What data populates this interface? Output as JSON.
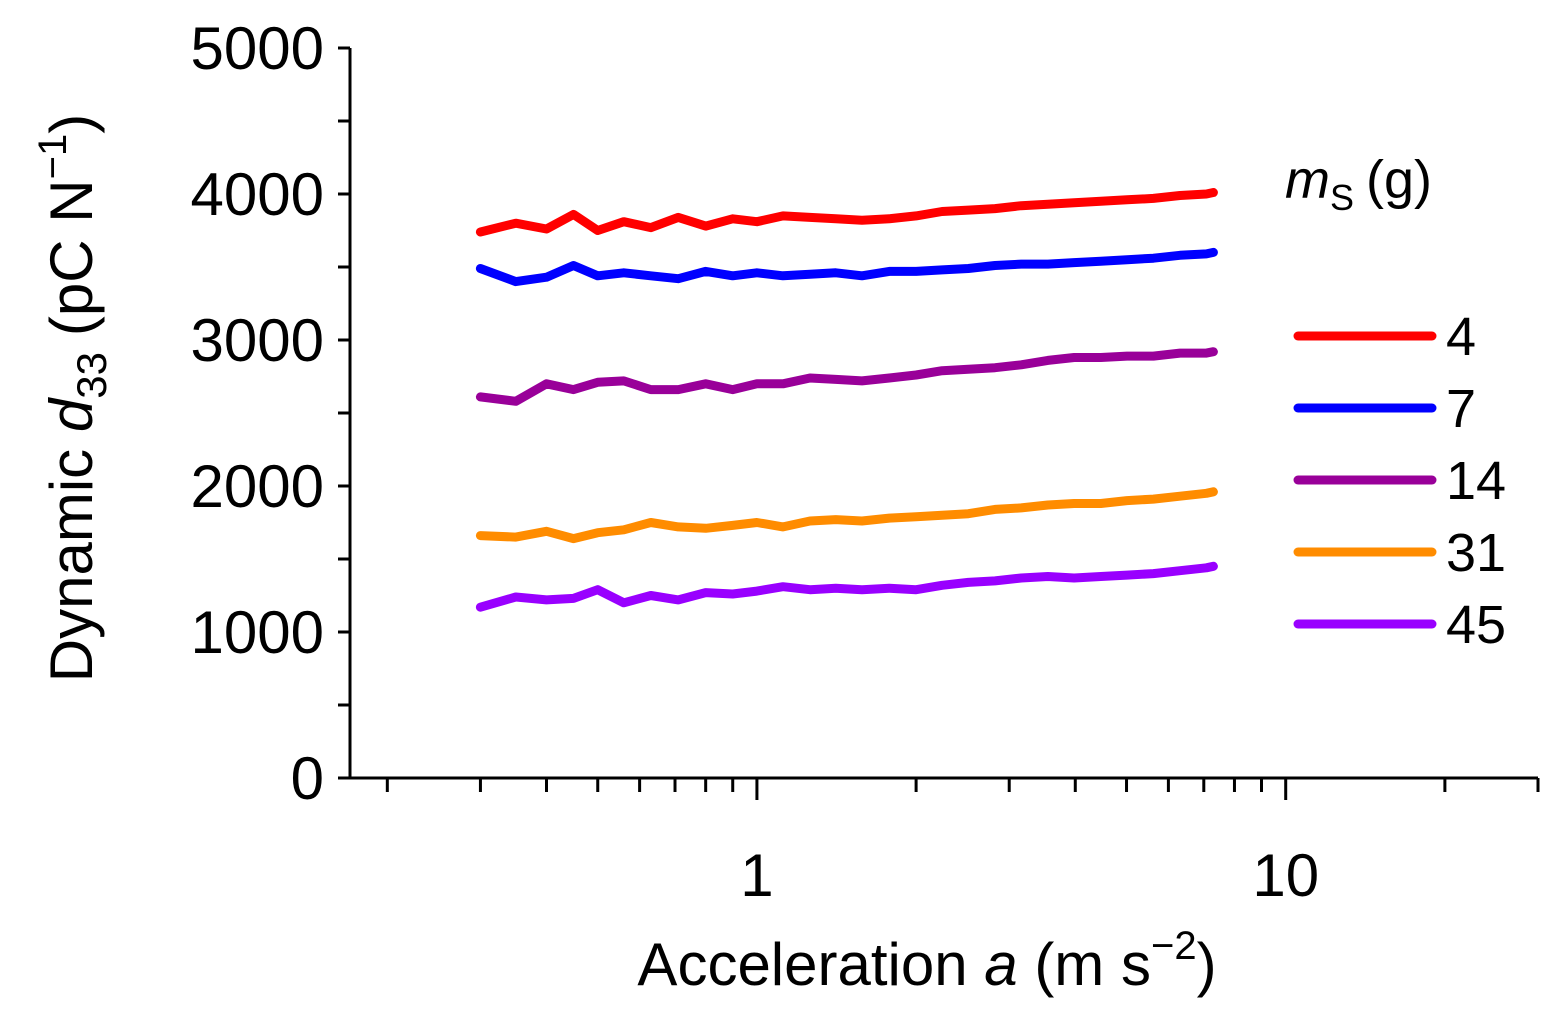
{
  "chart_data": {
    "type": "line",
    "xaxis": {
      "label": "Acceleration",
      "label_var": "a",
      "label_unit_prefix": "(m s",
      "label_unit_exp": "−2",
      "label_unit_suffix": ")",
      "scale": "log",
      "range": [
        0.17,
        30
      ],
      "tick_labels": [
        {
          "value": 1,
          "text": "1"
        },
        {
          "value": 10,
          "text": "10"
        }
      ],
      "minor_ticks": [
        0.2,
        0.3,
        0.4,
        0.5,
        0.6,
        0.7,
        0.8,
        0.9,
        2,
        3,
        4,
        5,
        6,
        7,
        8,
        9,
        20,
        30
      ]
    },
    "yaxis": {
      "label_prefix": "Dynamic ",
      "label_var": "d",
      "label_sub": "33",
      "label_unit_prefix": "(pC N",
      "label_unit_exp": "−1",
      "label_unit_suffix": ")",
      "range": [
        0,
        5000
      ],
      "ticks": [
        0,
        1000,
        2000,
        3000,
        4000,
        5000
      ],
      "tick_labels": [
        "0",
        "1000",
        "2000",
        "3000",
        "4000",
        "5000"
      ],
      "minor_ticks": [
        500,
        1500,
        2500,
        3500,
        4500
      ]
    },
    "legend": {
      "title_var": "m",
      "title_sub": "S",
      "title_unit": "(g)",
      "position": "right"
    },
    "series": [
      {
        "name": "4",
        "color": "#ff0000",
        "points": [
          [
            0.3,
            3740
          ],
          [
            0.35,
            3800
          ],
          [
            0.4,
            3760
          ],
          [
            0.45,
            3860
          ],
          [
            0.5,
            3750
          ],
          [
            0.56,
            3810
          ],
          [
            0.63,
            3770
          ],
          [
            0.71,
            3840
          ],
          [
            0.8,
            3780
          ],
          [
            0.9,
            3830
          ],
          [
            1.0,
            3810
          ],
          [
            1.12,
            3850
          ],
          [
            1.26,
            3840
          ],
          [
            1.41,
            3830
          ],
          [
            1.58,
            3820
          ],
          [
            1.78,
            3830
          ],
          [
            2.0,
            3850
          ],
          [
            2.24,
            3880
          ],
          [
            2.51,
            3890
          ],
          [
            2.82,
            3900
          ],
          [
            3.16,
            3920
          ],
          [
            3.55,
            3930
          ],
          [
            3.98,
            3940
          ],
          [
            4.47,
            3950
          ],
          [
            5.01,
            3960
          ],
          [
            5.62,
            3970
          ],
          [
            6.31,
            3990
          ],
          [
            7.08,
            4000
          ],
          [
            7.3,
            4010
          ]
        ]
      },
      {
        "name": "7",
        "color": "#0000ff",
        "points": [
          [
            0.3,
            3490
          ],
          [
            0.35,
            3400
          ],
          [
            0.4,
            3430
          ],
          [
            0.45,
            3510
          ],
          [
            0.5,
            3440
          ],
          [
            0.56,
            3460
          ],
          [
            0.63,
            3440
          ],
          [
            0.71,
            3420
          ],
          [
            0.8,
            3470
          ],
          [
            0.9,
            3440
          ],
          [
            1.0,
            3460
          ],
          [
            1.12,
            3440
          ],
          [
            1.26,
            3450
          ],
          [
            1.41,
            3460
          ],
          [
            1.58,
            3440
          ],
          [
            1.78,
            3470
          ],
          [
            2.0,
            3470
          ],
          [
            2.24,
            3480
          ],
          [
            2.51,
            3490
          ],
          [
            2.82,
            3510
          ],
          [
            3.16,
            3520
          ],
          [
            3.55,
            3520
          ],
          [
            3.98,
            3530
          ],
          [
            4.47,
            3540
          ],
          [
            5.01,
            3550
          ],
          [
            5.62,
            3560
          ],
          [
            6.31,
            3580
          ],
          [
            7.08,
            3590
          ],
          [
            7.3,
            3600
          ]
        ]
      },
      {
        "name": "14",
        "color": "#990099",
        "points": [
          [
            0.3,
            2610
          ],
          [
            0.35,
            2580
          ],
          [
            0.4,
            2700
          ],
          [
            0.45,
            2660
          ],
          [
            0.5,
            2710
          ],
          [
            0.56,
            2720
          ],
          [
            0.63,
            2660
          ],
          [
            0.71,
            2660
          ],
          [
            0.8,
            2700
          ],
          [
            0.9,
            2660
          ],
          [
            1.0,
            2700
          ],
          [
            1.12,
            2700
          ],
          [
            1.26,
            2740
          ],
          [
            1.41,
            2730
          ],
          [
            1.58,
            2720
          ],
          [
            1.78,
            2740
          ],
          [
            2.0,
            2760
          ],
          [
            2.24,
            2790
          ],
          [
            2.51,
            2800
          ],
          [
            2.82,
            2810
          ],
          [
            3.16,
            2830
          ],
          [
            3.55,
            2860
          ],
          [
            3.98,
            2880
          ],
          [
            4.47,
            2880
          ],
          [
            5.01,
            2890
          ],
          [
            5.62,
            2890
          ],
          [
            6.31,
            2910
          ],
          [
            7.08,
            2910
          ],
          [
            7.3,
            2920
          ]
        ]
      },
      {
        "name": "31",
        "color": "#ff8c00",
        "points": [
          [
            0.3,
            1660
          ],
          [
            0.35,
            1650
          ],
          [
            0.4,
            1690
          ],
          [
            0.45,
            1640
          ],
          [
            0.5,
            1680
          ],
          [
            0.56,
            1700
          ],
          [
            0.63,
            1750
          ],
          [
            0.71,
            1720
          ],
          [
            0.8,
            1710
          ],
          [
            0.9,
            1730
          ],
          [
            1.0,
            1750
          ],
          [
            1.12,
            1720
          ],
          [
            1.26,
            1760
          ],
          [
            1.41,
            1770
          ],
          [
            1.58,
            1760
          ],
          [
            1.78,
            1780
          ],
          [
            2.0,
            1790
          ],
          [
            2.24,
            1800
          ],
          [
            2.51,
            1810
          ],
          [
            2.82,
            1840
          ],
          [
            3.16,
            1850
          ],
          [
            3.55,
            1870
          ],
          [
            3.98,
            1880
          ],
          [
            4.47,
            1880
          ],
          [
            5.01,
            1900
          ],
          [
            5.62,
            1910
          ],
          [
            6.31,
            1930
          ],
          [
            7.08,
            1950
          ],
          [
            7.3,
            1960
          ]
        ]
      },
      {
        "name": "45",
        "color": "#9900ff",
        "points": [
          [
            0.3,
            1170
          ],
          [
            0.35,
            1240
          ],
          [
            0.4,
            1220
          ],
          [
            0.45,
            1230
          ],
          [
            0.5,
            1290
          ],
          [
            0.56,
            1200
          ],
          [
            0.63,
            1250
          ],
          [
            0.71,
            1220
          ],
          [
            0.8,
            1270
          ],
          [
            0.9,
            1260
          ],
          [
            1.0,
            1280
          ],
          [
            1.12,
            1310
          ],
          [
            1.26,
            1290
          ],
          [
            1.41,
            1300
          ],
          [
            1.58,
            1290
          ],
          [
            1.78,
            1300
          ],
          [
            2.0,
            1290
          ],
          [
            2.24,
            1320
          ],
          [
            2.51,
            1340
          ],
          [
            2.82,
            1350
          ],
          [
            3.16,
            1370
          ],
          [
            3.55,
            1380
          ],
          [
            3.98,
            1370
          ],
          [
            4.47,
            1380
          ],
          [
            5.01,
            1390
          ],
          [
            5.62,
            1400
          ],
          [
            6.31,
            1420
          ],
          [
            7.08,
            1440
          ],
          [
            7.3,
            1450
          ]
        ]
      }
    ]
  }
}
